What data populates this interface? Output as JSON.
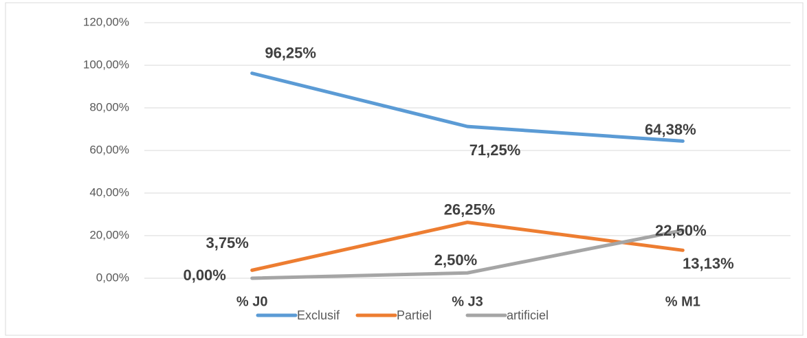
{
  "chart_data": {
    "type": "line",
    "categories": [
      "% J0",
      "% J3",
      "% M1"
    ],
    "series": [
      {
        "name": "Exclusif",
        "color": "#5b9bd5",
        "values": [
          96.25,
          71.25,
          64.38
        ],
        "value_labels": [
          "96,25%",
          "71,25%",
          "64,38%"
        ]
      },
      {
        "name": "Partiel",
        "color": "#ed7d31",
        "values": [
          3.75,
          26.25,
          13.13
        ],
        "value_labels": [
          "3,75%",
          "26,25%",
          "13,13%"
        ]
      },
      {
        "name": "artificiel",
        "color": "#a5a5a5",
        "values": [
          0,
          2.5,
          22.5
        ],
        "value_labels": [
          "0,00%",
          "2,50%",
          "22,50%"
        ]
      }
    ],
    "ylim": [
      0,
      120
    ],
    "yticks": [
      {
        "value": 0,
        "label": "0,00%"
      },
      {
        "value": 20,
        "label": "20,00%"
      },
      {
        "value": 40,
        "label": "40,00%"
      },
      {
        "value": 60,
        "label": "60,00%"
      },
      {
        "value": 80,
        "label": "80,00%"
      },
      {
        "value": 100,
        "label": "100,00%"
      },
      {
        "value": 120,
        "label": "120,00%"
      }
    ],
    "grid": true,
    "legend": "bottom"
  }
}
